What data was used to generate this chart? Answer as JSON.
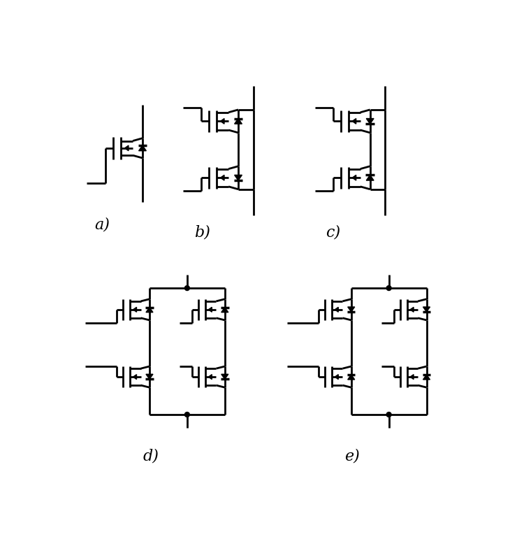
{
  "background": "#ffffff",
  "line_color": "#000000",
  "line_width": 2.0,
  "labels_text": [
    "a)",
    "b)",
    "c)",
    "d)",
    "e)"
  ],
  "label_fontsize": 16,
  "figsize": [
    7.3,
    7.71
  ],
  "dpi": 100
}
